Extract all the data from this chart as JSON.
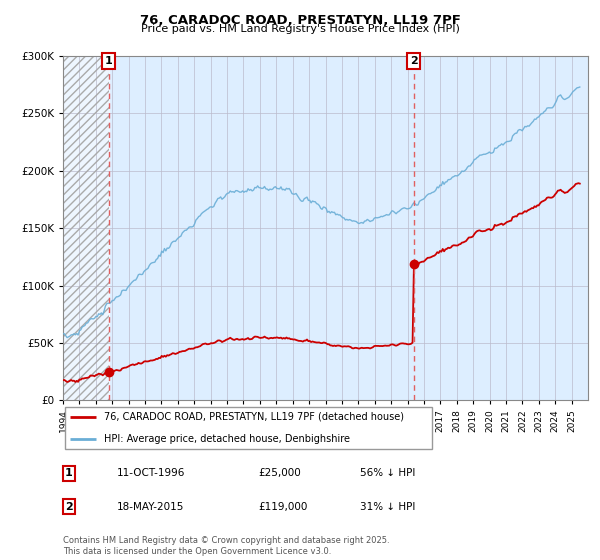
{
  "title1": "76, CARADOC ROAD, PRESTATYN, LL19 7PF",
  "title2": "Price paid vs. HM Land Registry's House Price Index (HPI)",
  "hpi_color": "#6aaed6",
  "price_color": "#cc0000",
  "vline_color": "#e06060",
  "sale1_date": "11-OCT-1996",
  "sale1_price": "£25,000",
  "sale1_hpi": "56% ↓ HPI",
  "sale2_date": "18-MAY-2015",
  "sale2_price": "£119,000",
  "sale2_hpi": "31% ↓ HPI",
  "legend1": "76, CARADOC ROAD, PRESTATYN, LL19 7PF (detached house)",
  "legend2": "HPI: Average price, detached house, Denbighshire",
  "footnote": "Contains HM Land Registry data © Crown copyright and database right 2025.\nThis data is licensed under the Open Government Licence v3.0.",
  "ylim_max": 300000,
  "sale1_year": 1996.78,
  "sale2_year": 2015.38,
  "sale1_price_val": 25000,
  "sale2_price_val": 119000,
  "chart_bg_color": "#ddeeff",
  "hatch_bg_color": "#cccccc"
}
